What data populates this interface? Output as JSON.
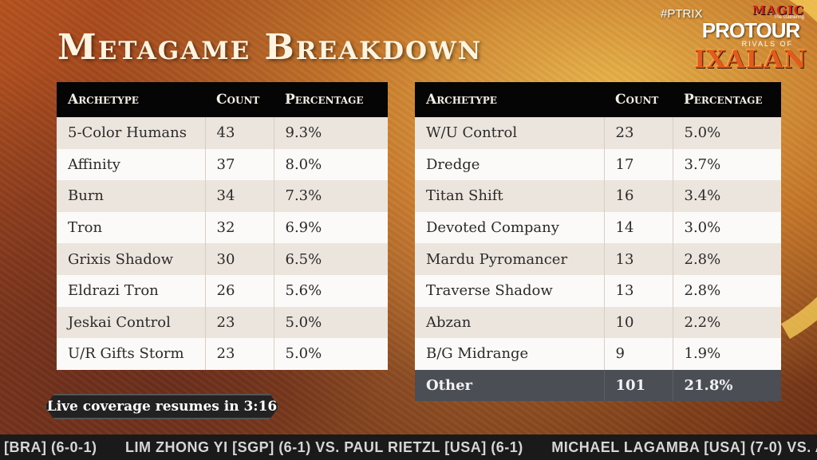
{
  "title": "Metagame Breakdown",
  "hashtag": "#PTRIX",
  "logo": {
    "magic": "MAGIC",
    "gathering": "The Gathering",
    "protour": "PROTOUR",
    "rivals": "RIVALS OF",
    "ixalan": "IXALAN"
  },
  "table_headers": {
    "archetype": "Archetype",
    "count": "Count",
    "percentage": "Percentage"
  },
  "left_table": [
    {
      "archetype": "5-Color Humans",
      "count": "43",
      "percentage": "9.3%"
    },
    {
      "archetype": "Affinity",
      "count": "37",
      "percentage": "8.0%"
    },
    {
      "archetype": "Burn",
      "count": "34",
      "percentage": "7.3%"
    },
    {
      "archetype": "Tron",
      "count": "32",
      "percentage": "6.9%"
    },
    {
      "archetype": "Grixis Shadow",
      "count": "30",
      "percentage": "6.5%"
    },
    {
      "archetype": "Eldrazi Tron",
      "count": "26",
      "percentage": "5.6%"
    },
    {
      "archetype": "Jeskai Control",
      "count": "23",
      "percentage": "5.0%"
    },
    {
      "archetype": "U/R Gifts Storm",
      "count": "23",
      "percentage": "5.0%"
    }
  ],
  "right_table": [
    {
      "archetype": "W/U Control",
      "count": "23",
      "percentage": "5.0%"
    },
    {
      "archetype": "Dredge",
      "count": "17",
      "percentage": "3.7%"
    },
    {
      "archetype": "Titan Shift",
      "count": "16",
      "percentage": "3.4%"
    },
    {
      "archetype": "Devoted Company",
      "count": "14",
      "percentage": "3.0%"
    },
    {
      "archetype": "Mardu Pyromancer",
      "count": "13",
      "percentage": "2.8%"
    },
    {
      "archetype": "Traverse Shadow",
      "count": "13",
      "percentage": "2.8%"
    },
    {
      "archetype": "Abzan",
      "count": "10",
      "percentage": "2.2%"
    },
    {
      "archetype": "B/G Midrange",
      "count": "9",
      "percentage": "1.9%"
    },
    {
      "archetype": "Other",
      "count": "101",
      "percentage": "21.8%"
    }
  ],
  "resume_text": "Live coverage resumes in 3:16",
  "ticker": [
    "[BRA] (6-0-1)",
    "LIM ZHONG YI [SGP] (6-1) VS. PAUL RIETZL [USA] (6-1)",
    "MICHAEL LAGAMBA [USA] (7-0) VS. A"
  ],
  "colors": {
    "header_bg": "#050505",
    "row_light": "#fbfaf8",
    "row_dark": "#ece5dd",
    "other_row": "#4b4f55",
    "title_text": "#fff4e0"
  }
}
